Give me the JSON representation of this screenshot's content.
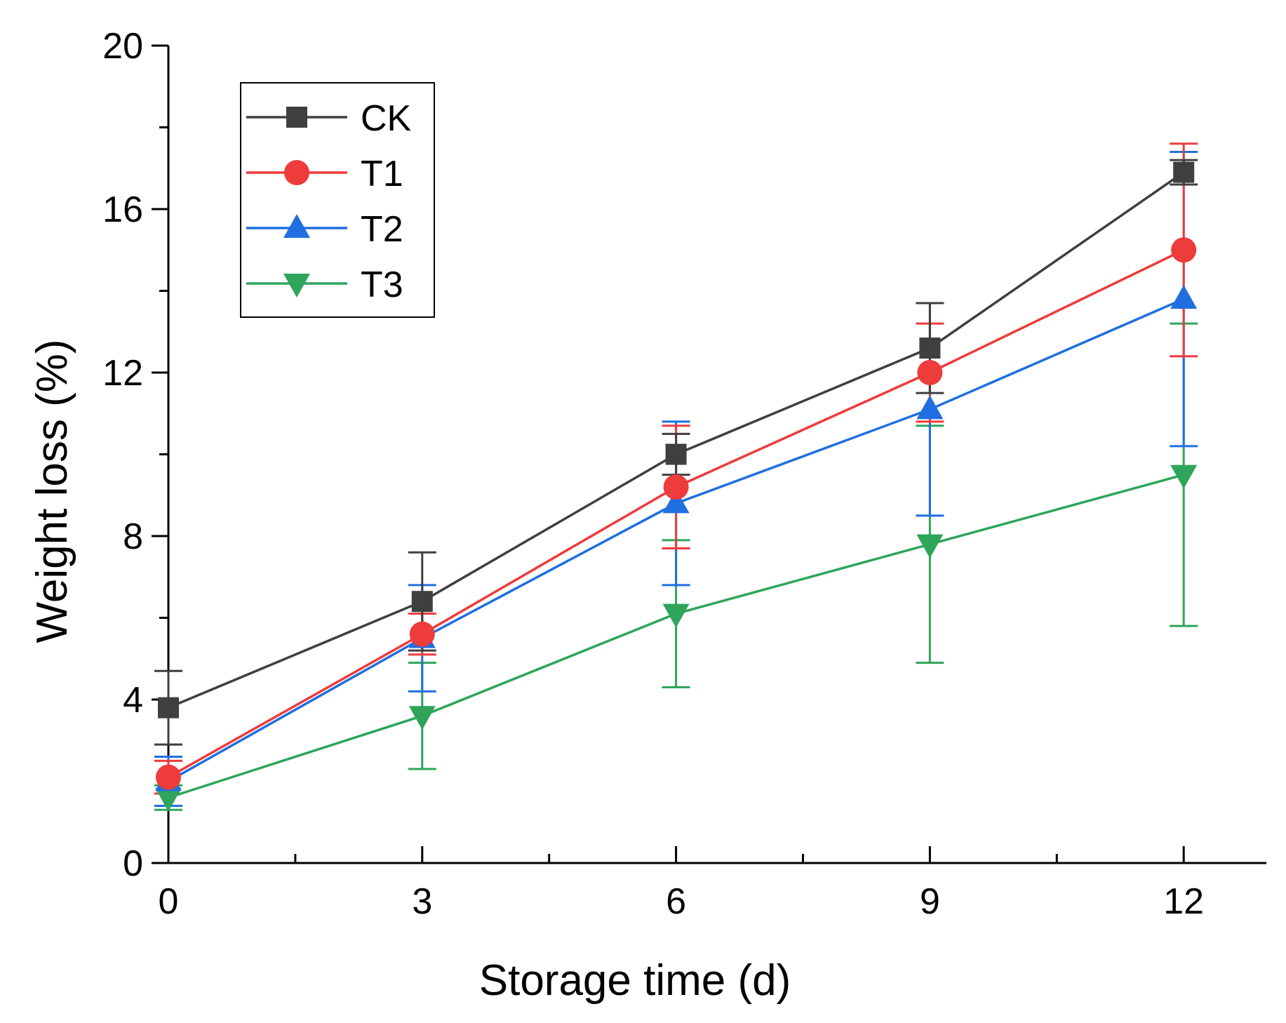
{
  "chart_data": {
    "type": "line",
    "title": "",
    "xlabel": "Storage time (d)",
    "ylabel": "Weight loss (%)",
    "xlim": [
      0,
      13
    ],
    "ylim": [
      0,
      20
    ],
    "x_ticks": [
      0,
      3,
      6,
      9,
      12
    ],
    "x_tick_labels": [
      "0",
      "3",
      "6",
      "9",
      "12"
    ],
    "x_minor_ticks": [
      1.5,
      4.5,
      7.5,
      10.5
    ],
    "y_ticks": [
      0,
      4,
      8,
      12,
      16,
      20
    ],
    "y_tick_labels": [
      "0",
      "4",
      "8",
      "12",
      "16",
      "20"
    ],
    "y_minor_ticks": [
      2,
      6,
      10,
      14,
      18
    ],
    "grid": false,
    "legend_position": "top-left",
    "x": [
      0,
      3,
      6,
      9,
      12
    ],
    "series": [
      {
        "name": "CK",
        "color": "#3f3f3f",
        "marker": "square",
        "values": [
          3.8,
          6.4,
          10.0,
          12.6,
          16.9
        ],
        "errors": [
          0.9,
          1.2,
          0.5,
          1.1,
          0.3
        ]
      },
      {
        "name": "T1",
        "color": "#ee3b3b",
        "marker": "circle",
        "values": [
          2.1,
          5.6,
          9.2,
          12.0,
          15.0
        ],
        "errors": [
          0.4,
          0.5,
          1.5,
          1.2,
          2.6
        ]
      },
      {
        "name": "T2",
        "color": "#1f6fe0",
        "marker": "triangle-up",
        "values": [
          2.0,
          5.5,
          8.8,
          11.1,
          13.8
        ],
        "errors": [
          0.6,
          1.3,
          2.0,
          2.6,
          3.6
        ]
      },
      {
        "name": "T3",
        "color": "#2ea55a",
        "marker": "triangle-down",
        "values": [
          1.6,
          3.6,
          6.1,
          7.8,
          9.5
        ],
        "errors": [
          0.3,
          1.3,
          1.8,
          2.9,
          3.7
        ]
      }
    ]
  }
}
